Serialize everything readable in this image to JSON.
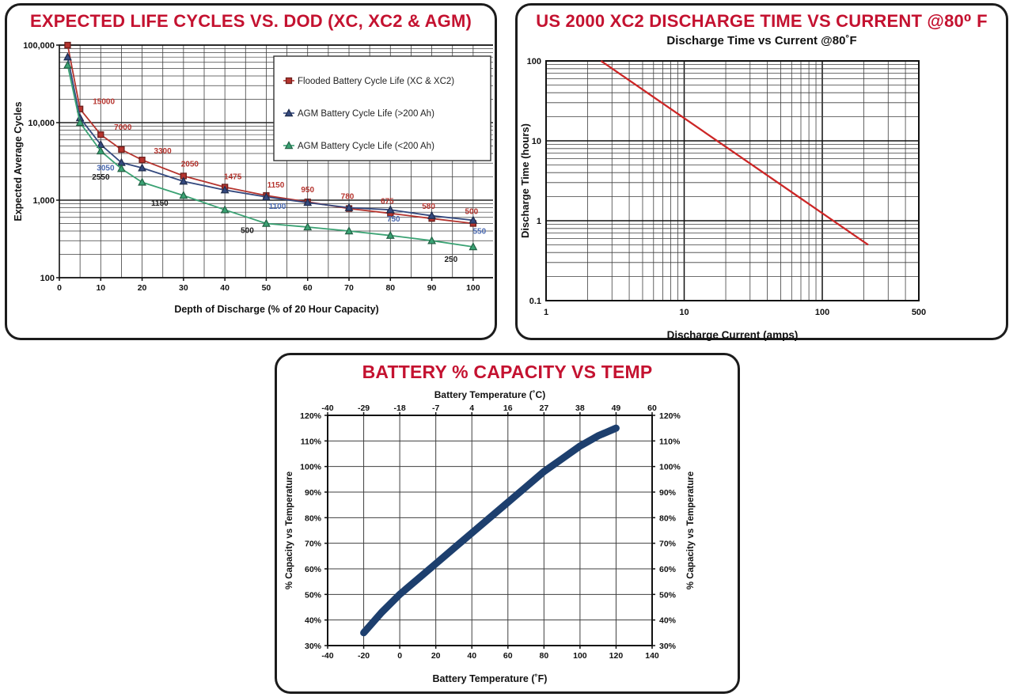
{
  "colors": {
    "title_red": "#c41230",
    "panel_border": "#1c1c1c",
    "grid": "#3f3f3f",
    "flooded_red": "#b5342e",
    "agm_large_navy": "#34497e",
    "agm_small_green": "#3aa273",
    "discharge_line_red": "#cc2626",
    "capacity_curve_navy": "#1d3f6e",
    "label_blue": "#4a69b0",
    "label_dark": "#1c1c1c"
  },
  "chart_data": [
    {
      "id": "life_cycles",
      "type": "line",
      "title": "EXPECTED LIFE CYCLES VS. DOD (XC, XC2 & AGM)",
      "xlabel": "Depth of Discharge (% of 20 Hour Capacity)",
      "ylabel": "Expected Average Cycles",
      "x_scale": "linear",
      "y_scale": "log",
      "xlim": [
        0,
        105
      ],
      "ylim": [
        100,
        100000
      ],
      "x_ticks": [
        0,
        10,
        20,
        30,
        40,
        50,
        60,
        70,
        80,
        90,
        100
      ],
      "x_minor_step": 5,
      "y_ticks": [
        {
          "v": 100000,
          "label": "100,000"
        },
        {
          "v": 10000,
          "label": "10,000"
        },
        {
          "v": 1000,
          "label": "1,000"
        },
        {
          "v": 100,
          "label": "100"
        }
      ],
      "legend": {
        "position": "inside-top-right",
        "entries": [
          {
            "label": "Flooded Battery Cycle Life (XC & XC2)",
            "marker": "square",
            "color_key": "flooded_red"
          },
          {
            "label": "AGM Battery Cycle Life (>200 Ah)",
            "marker": "triangle",
            "color_key": "agm_large_navy"
          },
          {
            "label": "AGM Battery Cycle Life (<200 Ah)",
            "marker": "triangle",
            "color_key": "agm_small_green"
          }
        ]
      },
      "series": [
        {
          "name": "Flooded Battery Cycle Life (XC & XC2)",
          "marker": "square",
          "color_key": "flooded_red",
          "label_color_key": "flooded_red",
          "points": [
            [
              2,
              100000
            ],
            [
              5,
              15000
            ],
            [
              10,
              7000
            ],
            [
              15,
              4500
            ],
            [
              20,
              3300
            ],
            [
              30,
              2050
            ],
            [
              40,
              1475
            ],
            [
              50,
              1150
            ],
            [
              60,
              950
            ],
            [
              70,
              780
            ],
            [
              80,
              675
            ],
            [
              90,
              580
            ],
            [
              100,
              500
            ]
          ],
          "labels": [
            {
              "x": 5,
              "y": 15000,
              "text": "15000",
              "dx": 30,
              "dy": -6
            },
            {
              "x": 10,
              "y": 7000,
              "text": "7000",
              "dx": 28,
              "dy": -6
            },
            {
              "x": 20,
              "y": 3300,
              "text": "3300",
              "dx": 26,
              "dy": -8
            },
            {
              "x": 30,
              "y": 2050,
              "text": "2050",
              "dx": 8,
              "dy": -12
            },
            {
              "x": 40,
              "y": 1475,
              "text": "1475",
              "dx": 10,
              "dy": -10
            },
            {
              "x": 50,
              "y": 1150,
              "text": "1150",
              "dx": 12,
              "dy": -10
            },
            {
              "x": 60,
              "y": 950,
              "text": "950",
              "dx": 0,
              "dy": -12
            },
            {
              "x": 70,
              "y": 780,
              "text": "780",
              "dx": -2,
              "dy": -12
            },
            {
              "x": 80,
              "y": 675,
              "text": "675",
              "dx": -4,
              "dy": -12
            },
            {
              "x": 90,
              "y": 580,
              "text": "580",
              "dx": -4,
              "dy": -12
            },
            {
              "x": 100,
              "y": 500,
              "text": "500",
              "dx": -2,
              "dy": -12
            }
          ]
        },
        {
          "name": "AGM Battery Cycle Life (>200 Ah)",
          "marker": "triangle",
          "color_key": "agm_large_navy",
          "label_color_key": "label_blue",
          "points": [
            [
              2,
              70000
            ],
            [
              5,
              11500
            ],
            [
              10,
              5200
            ],
            [
              15,
              3050
            ],
            [
              20,
              2600
            ],
            [
              30,
              1750
            ],
            [
              40,
              1350
            ],
            [
              50,
              1100
            ],
            [
              60,
              930
            ],
            [
              70,
              800
            ],
            [
              80,
              750
            ],
            [
              90,
              630
            ],
            [
              100,
              550
            ]
          ],
          "labels": [
            {
              "x": 15,
              "y": 3050,
              "text": "3050",
              "dx": -20,
              "dy": 10
            },
            {
              "x": 50,
              "y": 1100,
              "text": "1100",
              "dx": 14,
              "dy": 15
            },
            {
              "x": 80,
              "y": 750,
              "text": "750",
              "dx": 4,
              "dy": 15
            },
            {
              "x": 100,
              "y": 550,
              "text": "550",
              "dx": 8,
              "dy": 17
            }
          ]
        },
        {
          "name": "AGM Battery Cycle Life (<200 Ah)",
          "marker": "triangle",
          "color_key": "agm_small_green",
          "label_color_key": "label_dark",
          "points": [
            [
              2,
              55000
            ],
            [
              5,
              10000
            ],
            [
              10,
              4300
            ],
            [
              15,
              2550
            ],
            [
              20,
              1700
            ],
            [
              30,
              1150
            ],
            [
              40,
              750
            ],
            [
              50,
              500
            ],
            [
              60,
              450
            ],
            [
              70,
              400
            ],
            [
              80,
              350
            ],
            [
              90,
              300
            ],
            [
              100,
              250
            ]
          ],
          "labels": [
            {
              "x": 15,
              "y": 2550,
              "text": "2550",
              "dx": -26,
              "dy": 14
            },
            {
              "x": 30,
              "y": 1150,
              "text": "1150",
              "dx": -30,
              "dy": 13
            },
            {
              "x": 50,
              "y": 500,
              "text": "500",
              "dx": -24,
              "dy": 12
            },
            {
              "x": 100,
              "y": 250,
              "text": "250",
              "dx": -28,
              "dy": 19
            }
          ]
        }
      ]
    },
    {
      "id": "discharge_time",
      "type": "line",
      "title": "US 2000 XC2 DISCHARGE TIME VS CURRENT @80⁰ F",
      "subtitle": "Discharge Time vs Current @80˚F",
      "xlabel": "Discharge Current (amps)",
      "ylabel": "Discharge Time (hours)",
      "x_scale": "log",
      "y_scale": "log",
      "xlim": [
        1,
        500
      ],
      "ylim": [
        0.1,
        100
      ],
      "x_ticks": [
        {
          "v": 1,
          "label": "1"
        },
        {
          "v": 10,
          "label": "10"
        },
        {
          "v": 100,
          "label": "100"
        },
        {
          "v": 500,
          "label": "500"
        }
      ],
      "y_ticks": [
        {
          "v": 100,
          "label": "100"
        },
        {
          "v": 10,
          "label": "10"
        },
        {
          "v": 1,
          "label": "1"
        },
        {
          "v": 0.1,
          "label": "0.1"
        }
      ],
      "series": [
        {
          "name": "Discharge time vs current",
          "marker": "none",
          "color_key": "discharge_line_red",
          "points": [
            [
              2.5,
              100
            ],
            [
              215,
              0.5
            ]
          ]
        }
      ]
    },
    {
      "id": "capacity_vs_temp",
      "type": "line",
      "title": "BATTERY % CAPACITY VS TEMP",
      "xlabel_top": "Battery Temperature (˚C)",
      "xlabel_bottom": "Battery Temperature (˚F)",
      "ylabel_left": "% Capacity vs Temperature",
      "ylabel_right": "% Capacity vs Temperature",
      "x_scale": "linear",
      "y_scale": "linear",
      "xlim": [
        -40,
        140
      ],
      "ylim": [
        30,
        120
      ],
      "x_ticks_bottom": [
        "-40",
        "-20",
        "0",
        "20",
        "40",
        "60",
        "80",
        "100",
        "120",
        "140"
      ],
      "x_ticks_top": [
        "-40",
        "-29",
        "-18",
        "-7",
        "4",
        "16",
        "27",
        "38",
        "49",
        "60"
      ],
      "x_tick_positions_f": [
        -40,
        -20,
        0,
        20,
        40,
        60,
        80,
        100,
        120,
        140
      ],
      "y_ticks": [
        "120%",
        "110%",
        "100%",
        "90%",
        "80%",
        "70%",
        "60%",
        "50%",
        "40%",
        "30%"
      ],
      "y_tick_values": [
        120,
        110,
        100,
        90,
        80,
        70,
        60,
        50,
        40,
        30
      ],
      "series": [
        {
          "name": "% capacity vs temperature",
          "marker": "none",
          "color_key": "capacity_curve_navy",
          "points": [
            [
              -20,
              35
            ],
            [
              -10,
              43
            ],
            [
              0,
              50
            ],
            [
              10,
              56
            ],
            [
              20,
              62
            ],
            [
              30,
              68
            ],
            [
              40,
              74
            ],
            [
              50,
              80
            ],
            [
              60,
              86
            ],
            [
              70,
              92
            ],
            [
              80,
              98
            ],
            [
              90,
              103
            ],
            [
              100,
              108
            ],
            [
              110,
              112
            ],
            [
              120,
              115
            ]
          ]
        }
      ]
    }
  ]
}
